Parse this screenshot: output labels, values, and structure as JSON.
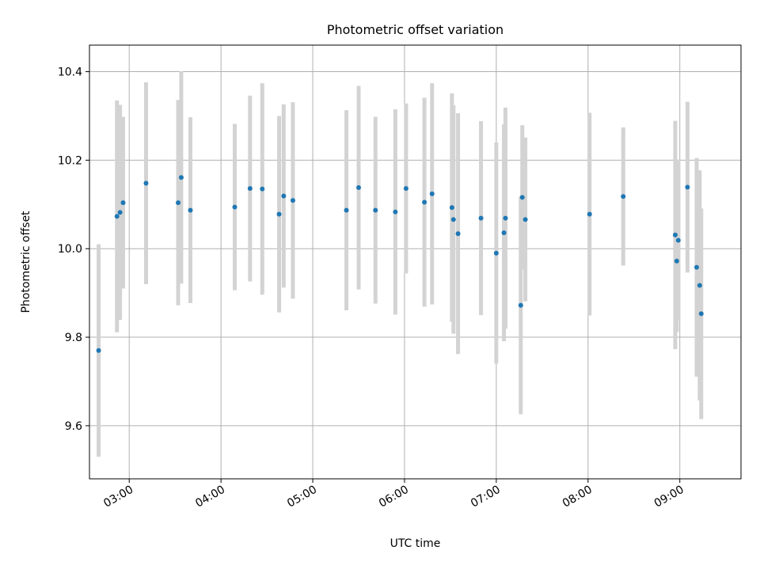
{
  "chart_data": {
    "type": "scatter",
    "title": "Photometric offset variation",
    "xlabel": "UTC time",
    "ylabel": "Photometric offset",
    "xlim": [
      "02:34",
      "09:40"
    ],
    "ylim": [
      9.48,
      10.46
    ],
    "x_ticks": [
      "03:00",
      "04:00",
      "05:00",
      "06:00",
      "07:00",
      "08:00",
      "09:00"
    ],
    "y_ticks": [
      9.6,
      9.8,
      10.0,
      10.2,
      10.4
    ],
    "y_tick_labels": [
      "9.6",
      "9.8",
      "10.0",
      "10.2",
      "10.4"
    ],
    "grid": true,
    "errorbar_color": "#d3d3d3",
    "marker_color": "#1f77b4",
    "points": [
      {
        "x": "02:40",
        "y": 9.77,
        "yerr": 0.24
      },
      {
        "x": "02:52",
        "y": 10.073,
        "yerr": 0.262
      },
      {
        "x": "02:54",
        "y": 10.082,
        "yerr": 0.243
      },
      {
        "x": "02:56",
        "y": 10.104,
        "yerr": 0.194
      },
      {
        "x": "03:11",
        "y": 10.148,
        "yerr": 0.228
      },
      {
        "x": "03:32",
        "y": 10.104,
        "yerr": 0.232
      },
      {
        "x": "03:34",
        "y": 10.161,
        "yerr": 0.24
      },
      {
        "x": "03:40",
        "y": 10.087,
        "yerr": 0.21
      },
      {
        "x": "04:09",
        "y": 10.094,
        "yerr": 0.188
      },
      {
        "x": "04:19",
        "y": 10.136,
        "yerr": 0.21
      },
      {
        "x": "04:27",
        "y": 10.135,
        "yerr": 0.239
      },
      {
        "x": "04:38",
        "y": 10.078,
        "yerr": 0.222
      },
      {
        "x": "04:41",
        "y": 10.119,
        "yerr": 0.207
      },
      {
        "x": "04:47",
        "y": 10.109,
        "yerr": 0.222
      },
      {
        "x": "05:22",
        "y": 10.087,
        "yerr": 0.226
      },
      {
        "x": "05:30",
        "y": 10.138,
        "yerr": 0.23
      },
      {
        "x": "05:41",
        "y": 10.087,
        "yerr": 0.211
      },
      {
        "x": "05:54",
        "y": 10.083,
        "yerr": 0.232
      },
      {
        "x": "06:01",
        "y": 10.136,
        "yerr": 0.192
      },
      {
        "x": "06:13",
        "y": 10.105,
        "yerr": 0.236
      },
      {
        "x": "06:18",
        "y": 10.124,
        "yerr": 0.25
      },
      {
        "x": "06:31",
        "y": 10.093,
        "yerr": 0.258
      },
      {
        "x": "06:32",
        "y": 10.066,
        "yerr": 0.258
      },
      {
        "x": "06:35",
        "y": 10.034,
        "yerr": 0.272
      },
      {
        "x": "06:50",
        "y": 10.069,
        "yerr": 0.219
      },
      {
        "x": "07:00",
        "y": 9.99,
        "yerr": 0.25
      },
      {
        "x": "07:05",
        "y": 10.036,
        "yerr": 0.245
      },
      {
        "x": "07:06",
        "y": 10.069,
        "yerr": 0.25
      },
      {
        "x": "07:16",
        "y": 9.872,
        "yerr": 0.246
      },
      {
        "x": "07:17",
        "y": 10.116,
        "yerr": 0.163
      },
      {
        "x": "07:19",
        "y": 10.066,
        "yerr": 0.185
      },
      {
        "x": "08:01",
        "y": 10.078,
        "yerr": 0.229
      },
      {
        "x": "08:23",
        "y": 10.118,
        "yerr": 0.156
      },
      {
        "x": "08:57",
        "y": 10.031,
        "yerr": 0.258
      },
      {
        "x": "08:58",
        "y": 9.972,
        "yerr": 0.16
      },
      {
        "x": "08:59",
        "y": 10.019,
        "yerr": 0.182
      },
      {
        "x": "09:05",
        "y": 10.139,
        "yerr": 0.193
      },
      {
        "x": "09:11",
        "y": 9.958,
        "yerr": 0.247
      },
      {
        "x": "09:13",
        "y": 9.917,
        "yerr": 0.26
      },
      {
        "x": "09:14",
        "y": 9.853,
        "yerr": 0.238
      }
    ]
  }
}
